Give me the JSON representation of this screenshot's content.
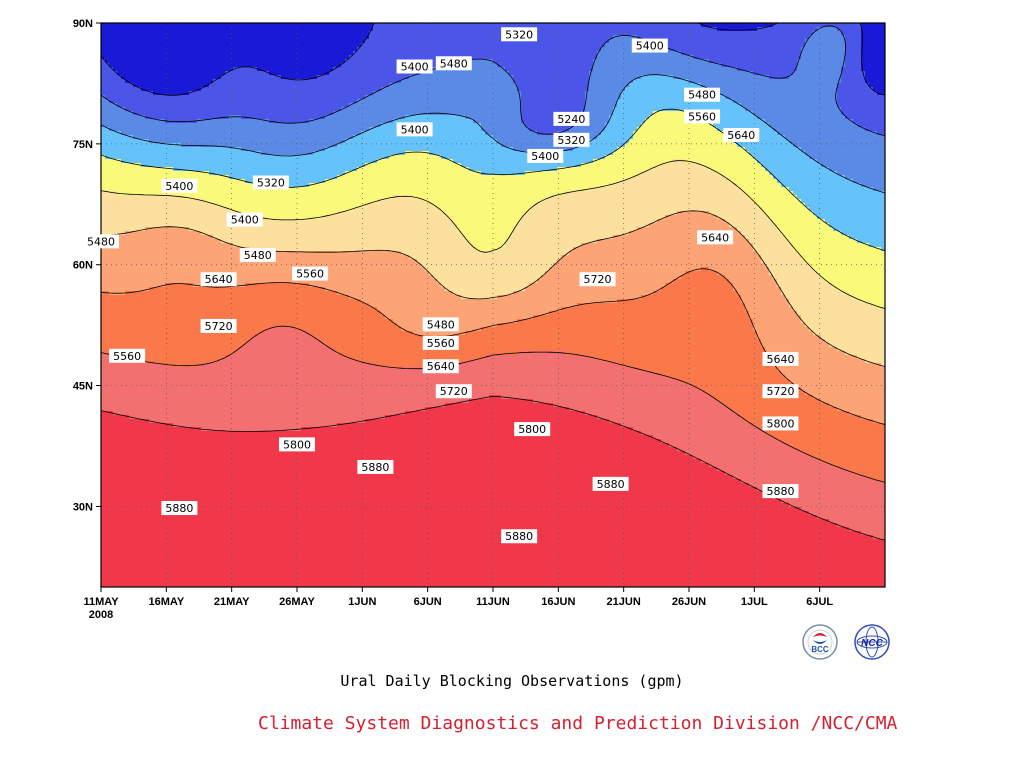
{
  "chart_data": {
    "type": "contour",
    "title": "Ural Daily Blocking Observations (gpm)",
    "credit": "Climate System Diagnostics and Prediction Division /NCC/CMA",
    "x_tick_labels": [
      "11MAY",
      "16MAY",
      "21MAY",
      "26MAY",
      "1JUN",
      "6JUN",
      "11JUN",
      "16JUN",
      "21JUN",
      "26JUN",
      "1JUL",
      "6JUL"
    ],
    "x_year_label": "2008",
    "y_tick_labels": [
      "30N",
      "45N",
      "60N",
      "75N",
      "90N"
    ],
    "y_ticks": [
      30,
      45,
      60,
      75,
      90
    ],
    "x_range": [
      "2008-05-11",
      "2008-07-10"
    ],
    "y_range": [
      20,
      90
    ],
    "contour_levels": [
      5240,
      5320,
      5400,
      5480,
      5560,
      5640,
      5720,
      5800,
      5880
    ],
    "level_colors": [
      "#1a1ad6",
      "#4b56e8",
      "#5a8ae6",
      "#66c2fa",
      "#fafa7a",
      "#fce09e",
      "#fca476",
      "#fa784a",
      "#f27070",
      "#f0384a"
    ],
    "grid": "dotted",
    "contour_labels": [
      {
        "text": "5320",
        "date": "2008-06-12",
        "lat": 88.6
      },
      {
        "text": "5400",
        "date": "2008-06-04",
        "lat": 84.6
      },
      {
        "text": "5480",
        "date": "2008-06-07",
        "lat": 85.0
      },
      {
        "text": "5400",
        "date": "2008-06-22",
        "lat": 87.2
      },
      {
        "text": "5480",
        "date": "2008-06-26",
        "lat": 81.1
      },
      {
        "text": "5560",
        "date": "2008-06-26",
        "lat": 78.4
      },
      {
        "text": "5240",
        "date": "2008-06-16",
        "lat": 78.1
      },
      {
        "text": "5320",
        "date": "2008-06-16",
        "lat": 75.5
      },
      {
        "text": "5400",
        "date": "2008-06-14",
        "lat": 73.5
      },
      {
        "text": "5400",
        "date": "2008-06-04",
        "lat": 76.8
      },
      {
        "text": "5640",
        "date": "2008-06-29",
        "lat": 76.1
      },
      {
        "text": "5400",
        "date": "2008-05-17",
        "lat": 69.8
      },
      {
        "text": "5320",
        "date": "2008-05-24",
        "lat": 70.2
      },
      {
        "text": "5400",
        "date": "2008-05-22",
        "lat": 65.6
      },
      {
        "text": "5480",
        "date": "2008-05-11",
        "lat": 62.9
      },
      {
        "text": "5480",
        "date": "2008-05-23",
        "lat": 61.2
      },
      {
        "text": "5640",
        "date": "2008-06-27",
        "lat": 63.4
      },
      {
        "text": "5560",
        "date": "2008-05-27",
        "lat": 58.9
      },
      {
        "text": "5640",
        "date": "2008-05-20",
        "lat": 58.2
      },
      {
        "text": "5720",
        "date": "2008-06-18",
        "lat": 58.2
      },
      {
        "text": "5720",
        "date": "2008-05-20",
        "lat": 52.4
      },
      {
        "text": "5480",
        "date": "2008-06-06",
        "lat": 52.6
      },
      {
        "text": "5560",
        "date": "2008-05-13",
        "lat": 48.7
      },
      {
        "text": "5560",
        "date": "2008-06-06",
        "lat": 50.3
      },
      {
        "text": "5640",
        "date": "2008-06-06",
        "lat": 47.4
      },
      {
        "text": "5640",
        "date": "2008-07-02",
        "lat": 48.3
      },
      {
        "text": "5720",
        "date": "2008-06-07",
        "lat": 44.3
      },
      {
        "text": "5720",
        "date": "2008-07-02",
        "lat": 44.3
      },
      {
        "text": "5800",
        "date": "2008-05-26",
        "lat": 37.7
      },
      {
        "text": "5800",
        "date": "2008-06-13",
        "lat": 39.6
      },
      {
        "text": "5800",
        "date": "2008-07-02",
        "lat": 40.3
      },
      {
        "text": "5880",
        "date": "2008-06-01",
        "lat": 34.9
      },
      {
        "text": "5880",
        "date": "2008-06-19",
        "lat": 32.8
      },
      {
        "text": "5880",
        "date": "2008-05-17",
        "lat": 29.8
      },
      {
        "text": "5880",
        "date": "2008-07-02",
        "lat": 31.9
      },
      {
        "text": "5880",
        "date": "2008-06-12",
        "lat": 26.3
      }
    ]
  },
  "logos": {
    "left_name": "bcc-logo",
    "left_text": "BCC",
    "right_name": "ncc-logo",
    "right_text": "NCC"
  }
}
